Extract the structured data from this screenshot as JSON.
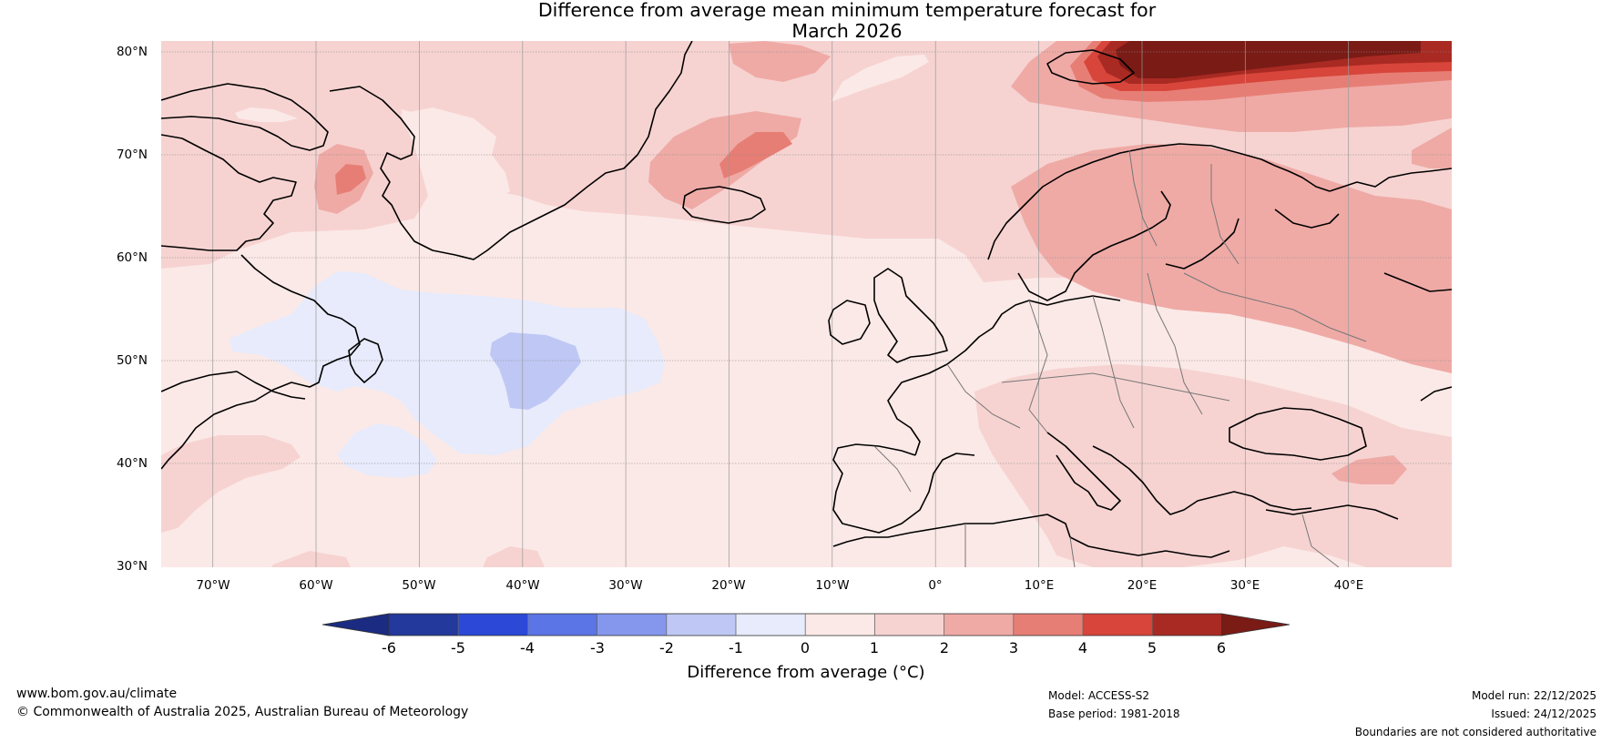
{
  "title": {
    "line1": "Difference from average mean minimum temperature forecast for",
    "line2": "March 2026"
  },
  "map": {
    "region": "North Atlantic and Europe",
    "lat_labels": [
      "80°N",
      "70°N",
      "60°N",
      "50°N",
      "40°N",
      "30°N"
    ],
    "lon_labels": [
      "70°W",
      "60°W",
      "50°W",
      "40°W",
      "30°W",
      "20°W",
      "10°W",
      "0°",
      "10°E",
      "20°E",
      "30°E",
      "40°E"
    ],
    "lat_range": [
      30,
      81
    ],
    "lon_range": [
      -75,
      50
    ]
  },
  "colorbar": {
    "ticks": [
      "-6",
      "-5",
      "-4",
      "-3",
      "-2",
      "-1",
      "0",
      "1",
      "2",
      "3",
      "4",
      "5",
      "6"
    ],
    "colors": [
      "#23399b",
      "#2b49d6",
      "#5b74e6",
      "#8497ec",
      "#bfc8f4",
      "#e7ebfb",
      "#fbe9e7",
      "#f6d3d1",
      "#efaaa6",
      "#e77e75",
      "#d7453b",
      "#a92a22"
    ],
    "under_color": "#1b2b81",
    "over_color": "#7a1b16",
    "label": "Difference from average (°C)"
  },
  "footer": {
    "website": "www.bom.gov.au/climate",
    "copyright": "© Commonwealth of Australia 2025, Australian Bureau of Meteorology",
    "model": "Model: ACCESS-S2",
    "base_period": "Base period: 1981-2018",
    "model_run": "Model run: 22/12/2025",
    "issued": "Issued: 24/12/2025",
    "disclaimer": "Boundaries are not considered authoritative"
  }
}
